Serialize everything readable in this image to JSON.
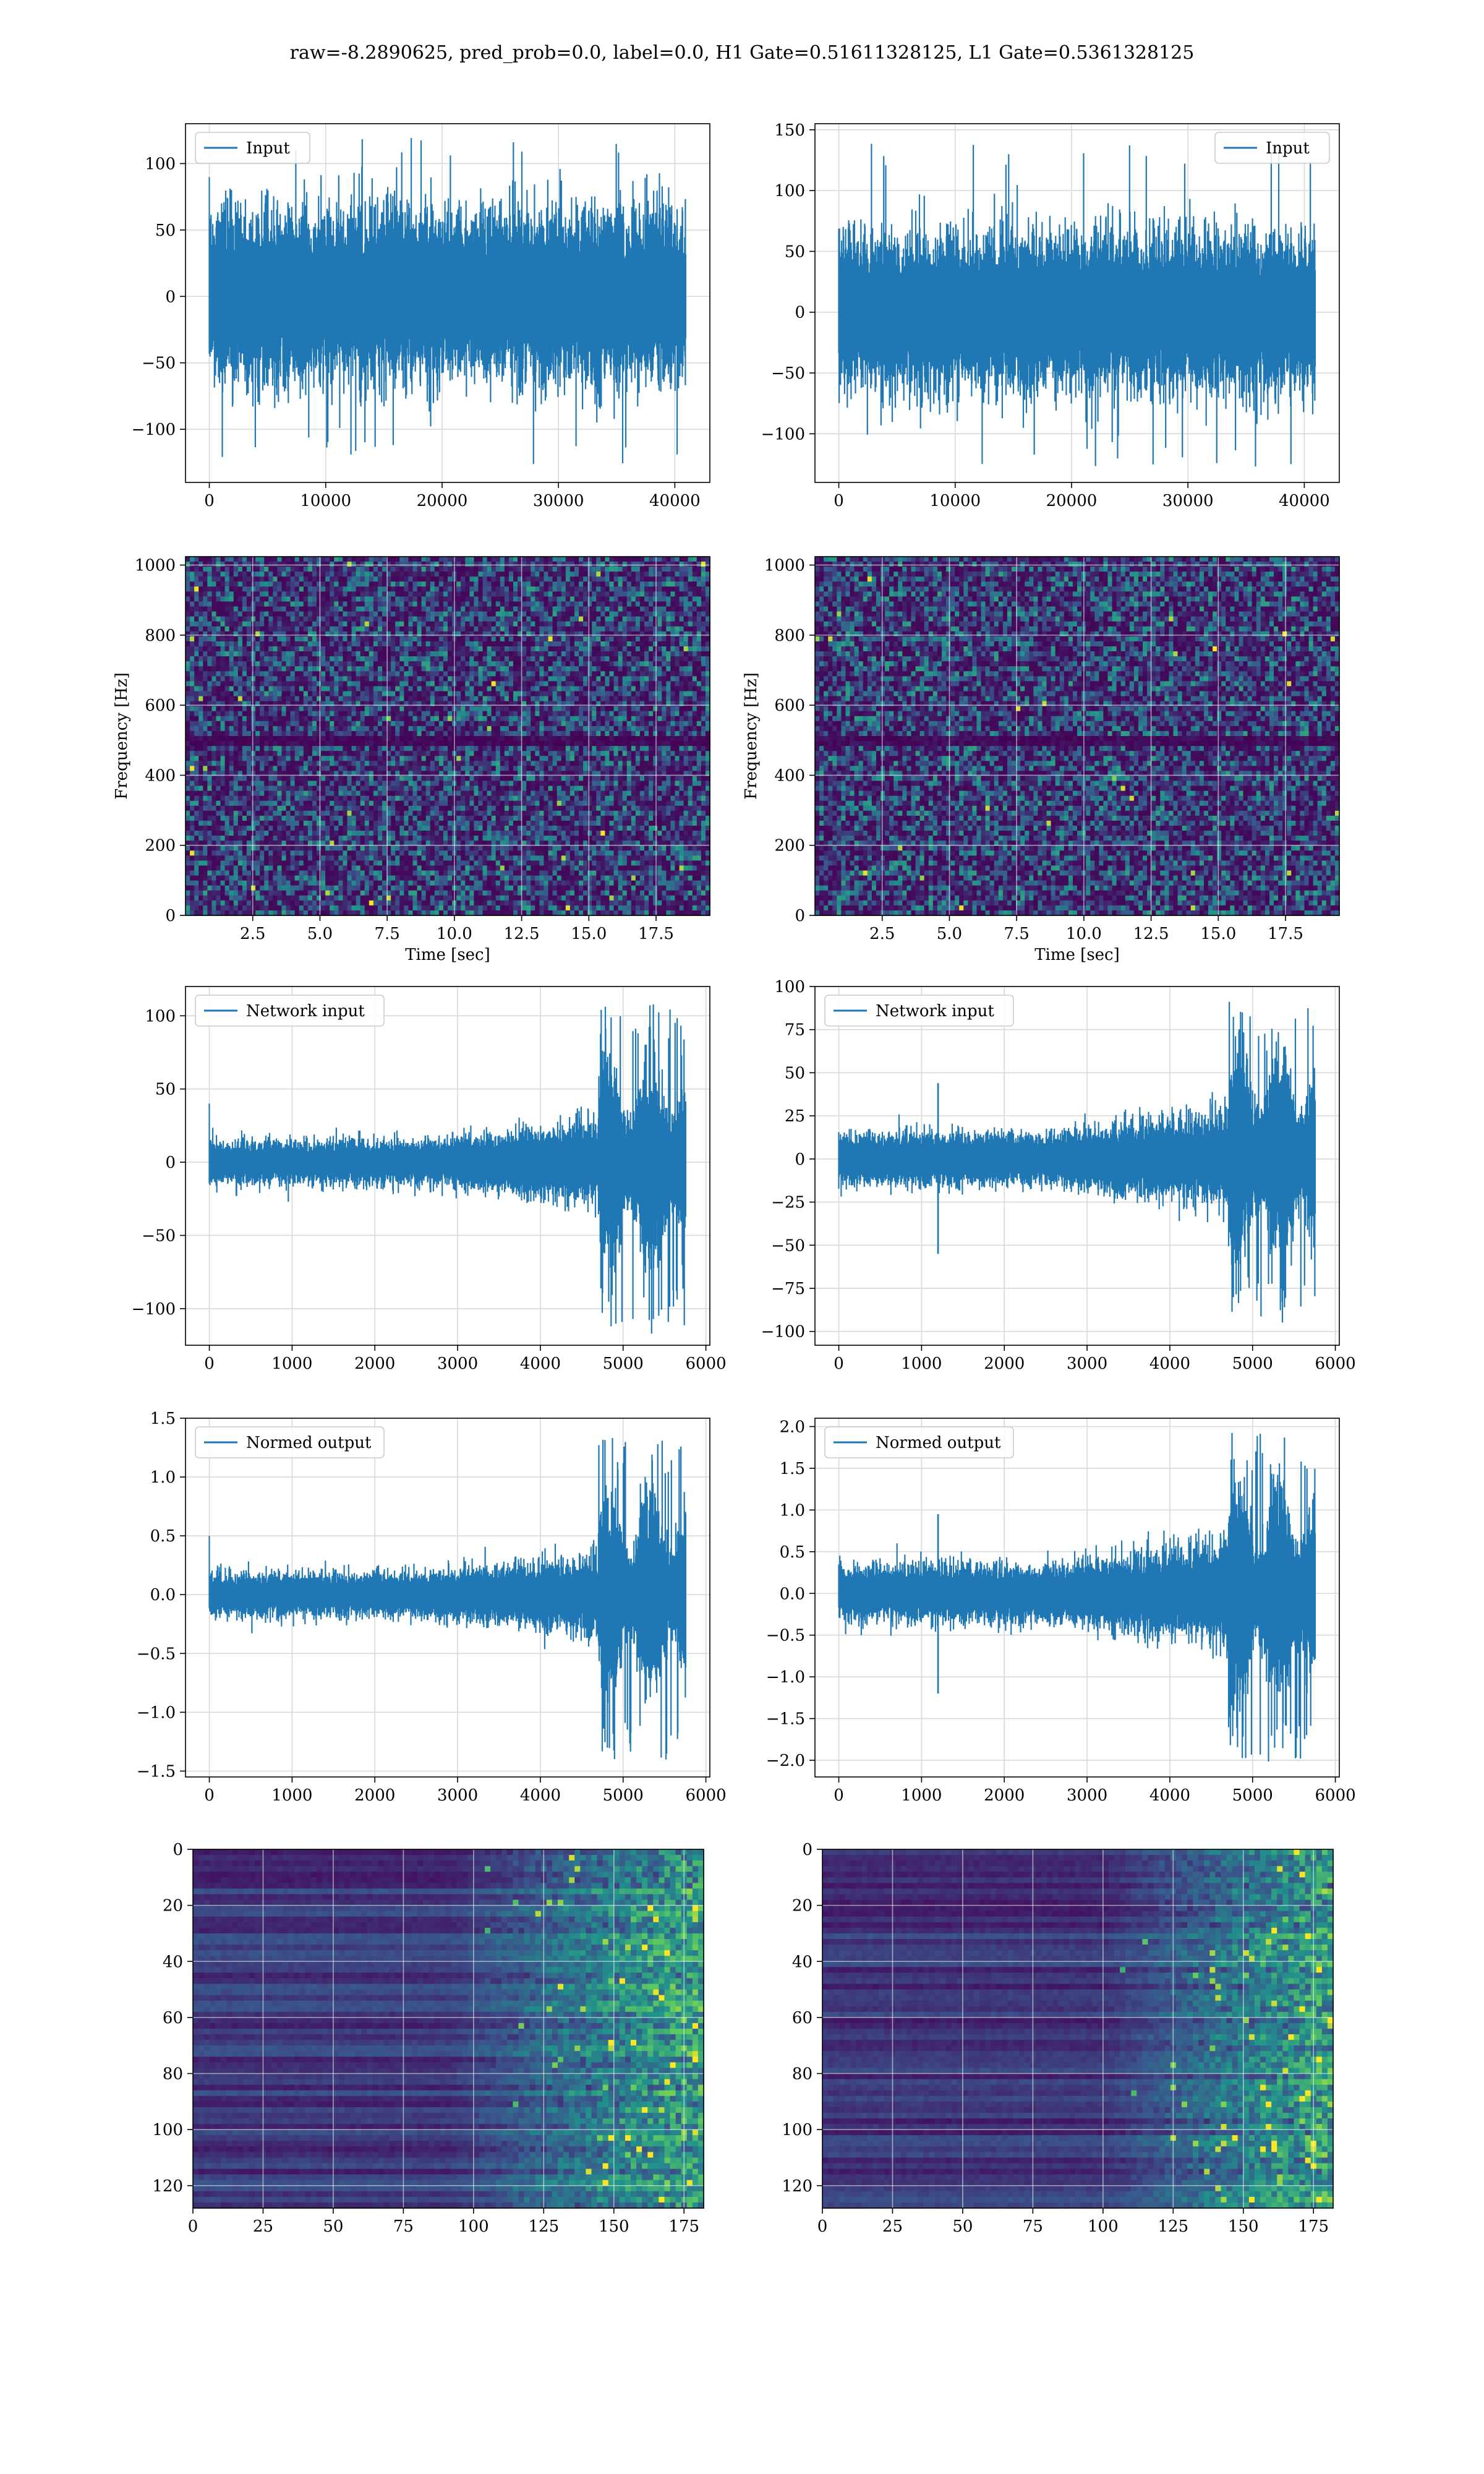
{
  "figure": {
    "title": "raw=-8.2890625, pred_prob=0.0, label=0.0, H1 Gate=0.51611328125, L1 Gate=0.5361328125"
  },
  "colors": {
    "line": "#1f77b4",
    "grid": "#d9d9d9",
    "viridis_low": "#440154",
    "viridis_mid": "#21918c",
    "viridis_high": "#fde725"
  },
  "chart_data": [
    {
      "id": "h1-input",
      "type": "line",
      "legend": "Input",
      "legend_loc": "upper left",
      "signal": {
        "kind": "noise",
        "n": 40960,
        "amp": 38,
        "spike_max": 120,
        "spike_min": -127
      },
      "xlim": [
        -2048,
        43008
      ],
      "ylim": [
        -140,
        130
      ],
      "xticks": [
        0,
        10000,
        20000,
        30000,
        40000
      ],
      "xtick_labels": [
        "0",
        "10000",
        "20000",
        "30000",
        "40000"
      ],
      "yticks": [
        -100,
        -50,
        0,
        50,
        100
      ],
      "ytick_labels": [
        "−100",
        "−50",
        "0",
        "50",
        "100"
      ],
      "xlabel": "",
      "ylabel": "",
      "grid": true
    },
    {
      "id": "l1-input",
      "type": "line",
      "legend": "Input",
      "legend_loc": "upper right",
      "signal": {
        "kind": "noise",
        "n": 40960,
        "amp": 38,
        "spike_max": 140,
        "spike_min": -127
      },
      "xlim": [
        -2048,
        43008
      ],
      "ylim": [
        -140,
        155
      ],
      "xticks": [
        0,
        10000,
        20000,
        30000,
        40000
      ],
      "xtick_labels": [
        "0",
        "10000",
        "20000",
        "30000",
        "40000"
      ],
      "yticks": [
        -100,
        -50,
        0,
        50,
        100,
        150
      ],
      "ytick_labels": [
        "−100",
        "−50",
        "0",
        "50",
        "100",
        "150"
      ],
      "xlabel": "",
      "ylabel": "",
      "grid": true
    },
    {
      "id": "h1-spectrogram",
      "type": "heatmap",
      "xlim": [
        0,
        19.5
      ],
      "ylim": [
        0,
        1024
      ],
      "xticks": [
        2.5,
        5.0,
        7.5,
        10.0,
        12.5,
        15.0,
        17.5
      ],
      "xtick_labels": [
        "2.5",
        "5.0",
        "7.5",
        "10.0",
        "12.5",
        "15.0",
        "17.5"
      ],
      "yticks": [
        0,
        200,
        400,
        600,
        800,
        1000
      ],
      "ytick_labels": [
        "0",
        "200",
        "400",
        "600",
        "800",
        "1000"
      ],
      "xlabel": "Time [sec]",
      "ylabel": "Frequency [Hz]",
      "grid": true,
      "dark_band_hz": 500
    },
    {
      "id": "l1-spectrogram",
      "type": "heatmap",
      "xlim": [
        0,
        19.5
      ],
      "ylim": [
        0,
        1024
      ],
      "xticks": [
        2.5,
        5.0,
        7.5,
        10.0,
        12.5,
        15.0,
        17.5
      ],
      "xtick_labels": [
        "2.5",
        "5.0",
        "7.5",
        "10.0",
        "12.5",
        "15.0",
        "17.5"
      ],
      "yticks": [
        0,
        200,
        400,
        600,
        800,
        1000
      ],
      "ytick_labels": [
        "0",
        "200",
        "400",
        "600",
        "800",
        "1000"
      ],
      "xlabel": "Time [sec]",
      "ylabel": "Frequency [Hz]",
      "grid": true,
      "dark_band_hz": 500
    },
    {
      "id": "h1-network-input",
      "type": "line",
      "legend": "Network input",
      "legend_loc": "upper left",
      "signal": {
        "kind": "chirp",
        "n": 5760,
        "base_amp": 9,
        "burst_start": 4700,
        "burst_end": 5760,
        "burst_amp": 45,
        "max": 108,
        "min": -113,
        "first_spike": 40
      },
      "xlim": [
        -288,
        6048
      ],
      "ylim": [
        -125,
        120
      ],
      "xticks": [
        0,
        1000,
        2000,
        3000,
        4000,
        5000,
        6000
      ],
      "xtick_labels": [
        "0",
        "1000",
        "2000",
        "3000",
        "4000",
        "5000",
        "6000"
      ],
      "yticks": [
        -100,
        -50,
        0,
        50,
        100
      ],
      "ytick_labels": [
        "−100",
        "−50",
        "0",
        "50",
        "100"
      ],
      "xlabel": "",
      "ylabel": "",
      "grid": true
    },
    {
      "id": "l1-network-input",
      "type": "line",
      "legend": "Network input",
      "legend_loc": "upper left",
      "signal": {
        "kind": "chirp",
        "n": 5760,
        "base_amp": 9,
        "burst_start": 4700,
        "burst_end": 5760,
        "burst_amp": 40,
        "max": 92,
        "min": -96,
        "mid_spike": [
          1200,
          44,
          -55
        ]
      },
      "xlim": [
        -288,
        6048
      ],
      "ylim": [
        -108,
        100
      ],
      "xticks": [
        0,
        1000,
        2000,
        3000,
        4000,
        5000,
        6000
      ],
      "xtick_labels": [
        "0",
        "1000",
        "2000",
        "3000",
        "4000",
        "5000",
        "6000"
      ],
      "yticks": [
        -100,
        -75,
        -50,
        -25,
        0,
        25,
        50,
        75,
        100
      ],
      "ytick_labels": [
        "−100",
        "−75",
        "−50",
        "−25",
        "0",
        "25",
        "50",
        "75",
        "100"
      ],
      "xlabel": "",
      "ylabel": "",
      "grid": true
    },
    {
      "id": "h1-normed-output",
      "type": "line",
      "legend": "Normed output",
      "legend_loc": "upper left",
      "signal": {
        "kind": "chirp",
        "n": 5760,
        "base_amp": 0.11,
        "burst_start": 4700,
        "burst_end": 5760,
        "burst_amp": 0.55,
        "max": 1.37,
        "min": -1.42,
        "first_spike": 0.5
      },
      "xlim": [
        -288,
        6048
      ],
      "ylim": [
        -1.55,
        1.5
      ],
      "xticks": [
        0,
        1000,
        2000,
        3000,
        4000,
        5000,
        6000
      ],
      "xtick_labels": [
        "0",
        "1000",
        "2000",
        "3000",
        "4000",
        "5000",
        "6000"
      ],
      "yticks": [
        -1.5,
        -1.0,
        -0.5,
        0.0,
        0.5,
        1.0,
        1.5
      ],
      "ytick_labels": [
        "−1.5",
        "−1.0",
        "−0.5",
        "0.0",
        "0.5",
        "1.0",
        "1.5"
      ],
      "xlabel": "",
      "ylabel": "",
      "grid": true
    },
    {
      "id": "l1-normed-output",
      "type": "line",
      "legend": "Normed output",
      "legend_loc": "upper left",
      "signal": {
        "kind": "chirp",
        "n": 5760,
        "base_amp": 0.2,
        "burst_start": 4700,
        "burst_end": 5760,
        "burst_amp": 0.85,
        "max": 1.95,
        "min": -2.05,
        "mid_spike": [
          1200,
          0.95,
          -1.2
        ]
      },
      "xlim": [
        -288,
        6048
      ],
      "ylim": [
        -2.2,
        2.1
      ],
      "xticks": [
        0,
        1000,
        2000,
        3000,
        4000,
        5000,
        6000
      ],
      "xtick_labels": [
        "0",
        "1000",
        "2000",
        "3000",
        "4000",
        "5000",
        "6000"
      ],
      "yticks": [
        -2.0,
        -1.5,
        -1.0,
        -0.5,
        0.0,
        0.5,
        1.0,
        1.5,
        2.0
      ],
      "ytick_labels": [
        "−2.0",
        "−1.5",
        "−1.0",
        "−0.5",
        "0.0",
        "0.5",
        "1.0",
        "1.5",
        "2.0"
      ],
      "xlabel": "",
      "ylabel": "",
      "grid": true
    },
    {
      "id": "h1-features",
      "type": "heatmap",
      "xlim": [
        0,
        182
      ],
      "ylim": [
        128,
        0
      ],
      "xticks": [
        0,
        25,
        50,
        75,
        100,
        125,
        150,
        175
      ],
      "xtick_labels": [
        "0",
        "25",
        "50",
        "75",
        "100",
        "125",
        "150",
        "175"
      ],
      "yticks": [
        0,
        20,
        40,
        60,
        80,
        100,
        120
      ],
      "ytick_labels": [
        "0",
        "20",
        "40",
        "60",
        "80",
        "100",
        "120"
      ],
      "xlabel": "",
      "ylabel": "",
      "grid": true,
      "activity_onset": 110
    },
    {
      "id": "l1-features",
      "type": "heatmap",
      "xlim": [
        0,
        182
      ],
      "ylim": [
        128,
        0
      ],
      "xticks": [
        0,
        25,
        50,
        75,
        100,
        125,
        150,
        175
      ],
      "xtick_labels": [
        "0",
        "25",
        "50",
        "75",
        "100",
        "125",
        "150",
        "175"
      ],
      "yticks": [
        0,
        20,
        40,
        60,
        80,
        100,
        120
      ],
      "ytick_labels": [
        "0",
        "20",
        "40",
        "60",
        "80",
        "100",
        "120"
      ],
      "xlabel": "",
      "ylabel": "",
      "grid": true,
      "activity_onset": 120
    }
  ]
}
